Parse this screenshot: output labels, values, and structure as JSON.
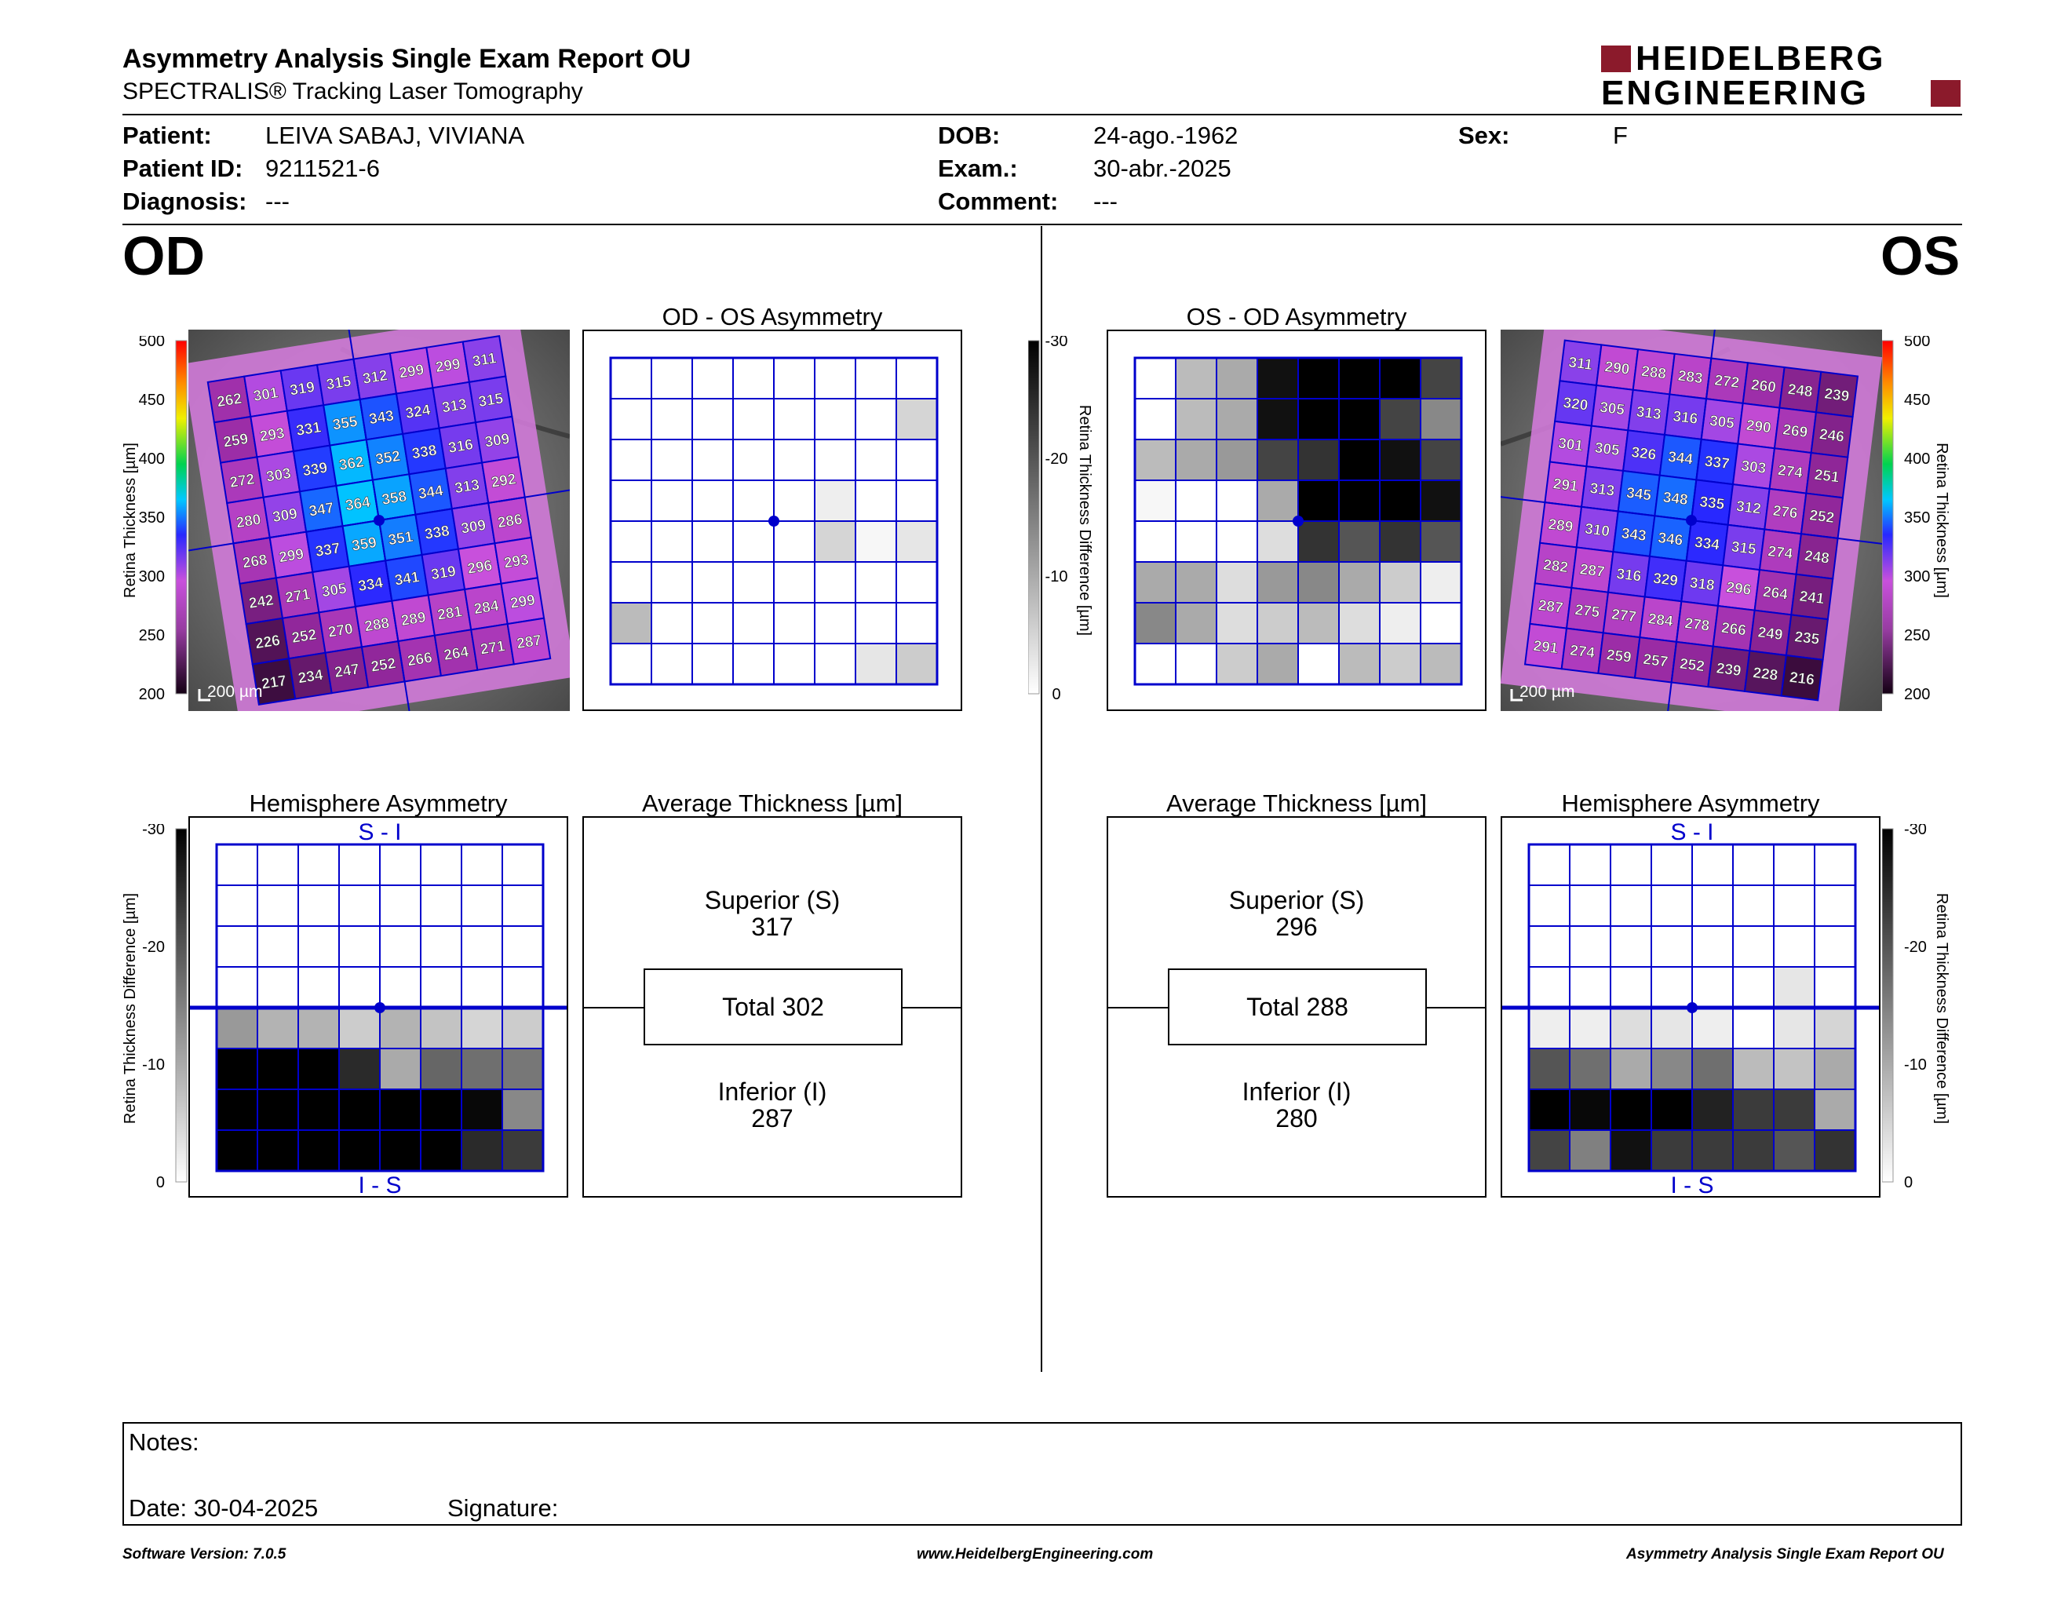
{
  "header": {
    "title": "Asymmetry Analysis Single Exam Report OU",
    "subtitle": "SPECTRALIS® Tracking Laser Tomography",
    "logo_line1": "HEIDELBERG",
    "logo_line2": "ENGINEERING"
  },
  "patient": {
    "patient_label": "Patient:",
    "patient_value": "LEIVA SABAJ, VIVIANA",
    "id_label": "Patient ID:",
    "id_value": "9211521-6",
    "diagnosis_label": "Diagnosis:",
    "diagnosis_value": "---",
    "dob_label": "DOB:",
    "dob_value": "24-ago.-1962",
    "exam_label": "Exam.:",
    "exam_value": "30-abr.-2025",
    "comment_label": "Comment:",
    "comment_value": "---",
    "sex_label": "Sex:",
    "sex_value": "F"
  },
  "od": {
    "eye_label": "OD",
    "asym_title": "OD - OS Asymmetry",
    "hemi_title": "Hemisphere Asymmetry",
    "avg_title": "Average Thickness [µm]",
    "superior_label": "Superior (S)",
    "superior_value": "317",
    "total_label": "Total 302",
    "inferior_label": "Inferior (I)",
    "inferior_value": "287",
    "scale_bar": "200 µm",
    "thickness_grid": [
      [
        262,
        301,
        319,
        315,
        312,
        299,
        299,
        311
      ],
      [
        259,
        293,
        331,
        355,
        343,
        324,
        313,
        315
      ],
      [
        272,
        303,
        339,
        362,
        352,
        338,
        316,
        309
      ],
      [
        280,
        309,
        347,
        364,
        358,
        344,
        313,
        292
      ],
      [
        268,
        299,
        337,
        359,
        351,
        338,
        309,
        286
      ],
      [
        242,
        271,
        305,
        334,
        341,
        319,
        296,
        293
      ],
      [
        226,
        252,
        270,
        288,
        289,
        281,
        284,
        299
      ],
      [
        217,
        234,
        247,
        252,
        266,
        264,
        271,
        287
      ]
    ],
    "asym_grid": [
      [
        0,
        0,
        0,
        0,
        0,
        0,
        0,
        0
      ],
      [
        0,
        0,
        0,
        0,
        0,
        0,
        0,
        5
      ],
      [
        0,
        0,
        0,
        0,
        0,
        0,
        0,
        0
      ],
      [
        0,
        0,
        0,
        0,
        0,
        2,
        0,
        0
      ],
      [
        0,
        0,
        0,
        0,
        0,
        5,
        1,
        3
      ],
      [
        0,
        0,
        0,
        0,
        0,
        0,
        0,
        0
      ],
      [
        8,
        0,
        0,
        0,
        0,
        0,
        0,
        0
      ],
      [
        0,
        0,
        0,
        0,
        0,
        0,
        3,
        6
      ]
    ],
    "hemi_grid": [
      [
        0,
        0,
        0,
        0,
        0,
        0,
        0,
        0
      ],
      [
        0,
        0,
        0,
        0,
        0,
        0,
        0,
        0
      ],
      [
        0,
        0,
        0,
        0,
        0,
        0,
        0,
        0
      ],
      [
        0,
        0,
        0,
        0,
        0,
        0,
        0,
        0
      ],
      [
        12,
        9,
        9,
        6,
        9,
        7,
        5,
        6
      ],
      [
        30,
        30,
        30,
        25,
        10,
        18,
        17,
        16
      ],
      [
        30,
        30,
        30,
        30,
        30,
        30,
        29,
        14
      ],
      [
        30,
        30,
        30,
        30,
        30,
        30,
        25,
        23
      ]
    ]
  },
  "os": {
    "eye_label": "OS",
    "asym_title": "OS - OD Asymmetry",
    "hemi_title": "Hemisphere Asymmetry",
    "avg_title": "Average Thickness [µm]",
    "superior_label": "Superior (S)",
    "superior_value": "296",
    "total_label": "Total 288",
    "inferior_label": "Inferior (I)",
    "inferior_value": "280",
    "scale_bar": "200 µm",
    "thickness_grid": [
      [
        311,
        290,
        288,
        283,
        272,
        260,
        248,
        239
      ],
      [
        320,
        305,
        313,
        316,
        305,
        290,
        269,
        246
      ],
      [
        301,
        305,
        326,
        344,
        337,
        303,
        274,
        251
      ],
      [
        291,
        313,
        345,
        348,
        335,
        312,
        276,
        252
      ],
      [
        289,
        310,
        343,
        346,
        334,
        315,
        274,
        248
      ],
      [
        282,
        287,
        316,
        329,
        318,
        296,
        264,
        241
      ],
      [
        287,
        275,
        277,
        284,
        278,
        266,
        249,
        235
      ],
      [
        291,
        274,
        259,
        257,
        252,
        239,
        228,
        216
      ]
    ],
    "asym_grid": [
      [
        0,
        8,
        10,
        28,
        30,
        30,
        30,
        22
      ],
      [
        0,
        8,
        10,
        28,
        30,
        30,
        22,
        14
      ],
      [
        8,
        10,
        12,
        22,
        24,
        30,
        28,
        22
      ],
      [
        1,
        0,
        0,
        10,
        30,
        30,
        30,
        28
      ],
      [
        0,
        0,
        0,
        4,
        24,
        20,
        24,
        20
      ],
      [
        10,
        10,
        4,
        12,
        14,
        10,
        6,
        2
      ],
      [
        14,
        10,
        4,
        6,
        8,
        4,
        2,
        0
      ],
      [
        0,
        0,
        6,
        10,
        0,
        8,
        6,
        8
      ]
    ],
    "hemi_grid": [
      [
        0,
        0,
        0,
        0,
        0,
        0,
        0,
        0
      ],
      [
        0,
        0,
        0,
        0,
        0,
        0,
        0,
        0
      ],
      [
        0,
        0,
        0,
        0,
        0,
        0,
        0,
        0
      ],
      [
        0,
        0,
        0,
        0,
        0,
        0,
        3,
        0
      ],
      [
        2,
        2,
        4,
        3,
        2,
        0,
        3,
        5
      ],
      [
        20,
        17,
        10,
        14,
        17,
        8,
        7,
        10
      ],
      [
        30,
        29,
        30,
        30,
        26,
        23,
        23,
        10
      ],
      [
        22,
        15,
        28,
        23,
        23,
        23,
        20,
        24
      ]
    ]
  },
  "colorbar": {
    "thickness_label": "Retina Thickness [µm]",
    "thickness_ticks": [
      "500",
      "450",
      "400",
      "350",
      "300",
      "250",
      "200"
    ],
    "diff_label": "Retina Thickness Difference [µm]",
    "diff_ticks": [
      "-30",
      "-20",
      "-10",
      "0"
    ]
  },
  "hemi_labels": {
    "top": "S - I",
    "bottom": "I - S"
  },
  "notes": {
    "notes_label": "Notes:",
    "date_label": "Date: 30-04-2025",
    "signature_label": "Signature:"
  },
  "footer": {
    "software": "Software Version: 7.0.5",
    "website": "www.HeidelbergEngineering.com",
    "report": "Asymmetry Analysis Single Exam Report OU"
  },
  "colors": {
    "grid_blue": "#0000cc",
    "logo_red": "#8b1a2b"
  }
}
